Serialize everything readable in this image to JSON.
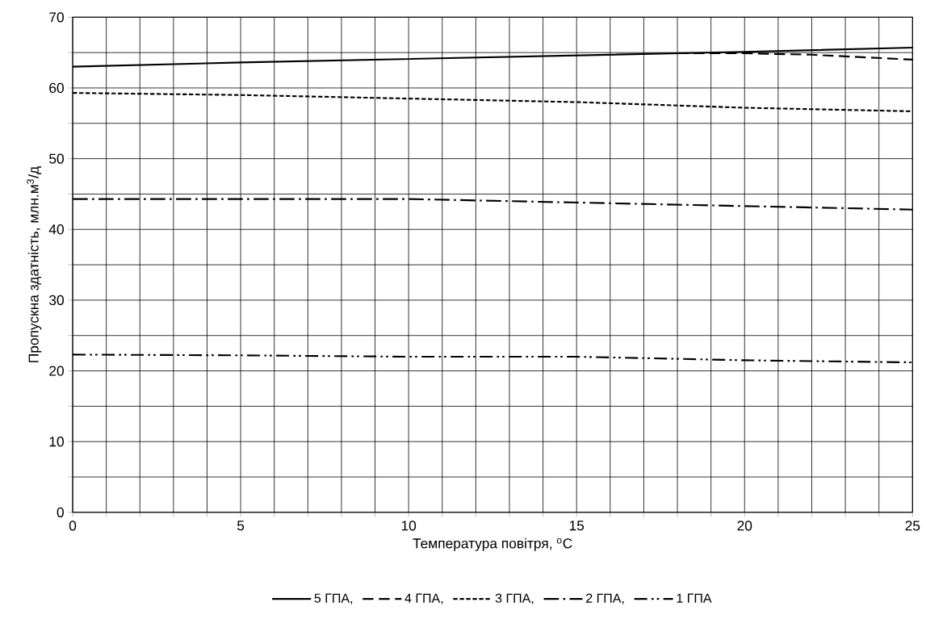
{
  "chart_data": {
    "type": "line",
    "xlabel": "Температура повітря, $^{o}$C",
    "ylabel": "Пропускна здатність, млн.м$^{3}$/д",
    "xlim": [
      0,
      25
    ],
    "ylim": [
      0,
      70
    ],
    "xticks": [
      0,
      {
        "value": 1,
        "label": null
      },
      {
        "value": 2,
        "label": null
      },
      {
        "value": 3,
        "label": null
      },
      {
        "value": 4,
        "label": null
      },
      5,
      {
        "value": 6,
        "label": null
      },
      {
        "value": 7,
        "label": null
      },
      {
        "value": 8,
        "label": null
      },
      {
        "value": 9,
        "label": null
      },
      10,
      {
        "value": 11,
        "label": null
      },
      {
        "value": 12,
        "label": null
      },
      {
        "value": 13,
        "label": null
      },
      {
        "value": 14,
        "label": null
      },
      15,
      {
        "value": 16,
        "label": null
      },
      {
        "value": 17,
        "label": null
      },
      {
        "value": 18,
        "label": null
      },
      {
        "value": 19,
        "label": null
      },
      20,
      {
        "value": 21,
        "label": null
      },
      {
        "value": 22,
        "label": null
      },
      {
        "value": 23,
        "label": null
      },
      {
        "value": 24,
        "label": null
      },
      25
    ],
    "yticks": [
      0,
      {
        "value": 5,
        "label": null
      },
      10,
      {
        "value": 15,
        "label": null
      },
      20,
      {
        "value": 25,
        "label": null
      },
      30,
      {
        "value": 35,
        "label": null
      },
      40,
      {
        "value": 45,
        "label": null
      },
      50,
      {
        "value": 55,
        "label": null
      },
      60,
      {
        "value": 65,
        "label": null
      },
      70
    ],
    "grid": true,
    "legend": "bottom",
    "marker": "none",
    "series": [
      {
        "name": "5  ГПА,",
        "color": "#000000",
        "line_style": "solid",
        "x": [
          0,
          5,
          10,
          15,
          20,
          25
        ],
        "values": [
          63.0,
          63.6,
          64.1,
          64.6,
          65.1,
          65.7
        ]
      },
      {
        "name": "4 ГПА,",
        "color": "#000000",
        "line_style": "dashed",
        "x": [
          18,
          20,
          22,
          25
        ],
        "values": [
          64.9,
          64.9,
          64.7,
          64.0
        ]
      },
      {
        "name": "3 ГПА,",
        "color": "#000000",
        "line_style": "dotted",
        "x": [
          0,
          5,
          10,
          15,
          20,
          25
        ],
        "values": [
          59.3,
          59.0,
          58.5,
          58.0,
          57.2,
          56.7
        ]
      },
      {
        "name": "2 ГПА,",
        "color": "#000000",
        "line_style": "dashdot",
        "x": [
          0,
          5,
          10,
          15,
          20,
          25
        ],
        "values": [
          44.3,
          44.3,
          44.3,
          43.8,
          43.3,
          42.8
        ]
      },
      {
        "name": "1 ГПА",
        "color": "#000000",
        "line_style": "dashdotdot",
        "x": [
          0,
          5,
          10,
          15,
          20,
          25
        ],
        "values": [
          22.3,
          22.2,
          22.0,
          22.0,
          21.5,
          21.2
        ]
      }
    ]
  }
}
